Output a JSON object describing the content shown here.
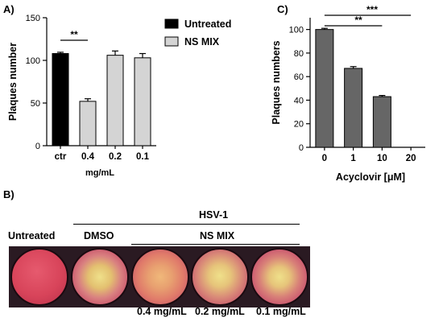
{
  "panel_labels": {
    "a": "A)",
    "b": "B)",
    "c": "C)"
  },
  "chart_data": [
    {
      "type": "bar",
      "categories": [
        "ctr",
        "0.4",
        "0.2",
        "0.1"
      ],
      "values": [
        108,
        52,
        106,
        103
      ],
      "errors": [
        1.5,
        3,
        5,
        5
      ],
      "series_of_category": [
        "Untreated",
        "NS MIX",
        "NS MIX",
        "NS MIX"
      ],
      "legend": [
        {
          "name": "Untreated",
          "color": "#000000"
        },
        {
          "name": "NS MIX",
          "color": "#d4d4d4"
        }
      ],
      "legend_position": "top-right",
      "xlabel": "mg/mL",
      "ylabel": "Plaques number",
      "ylim": [
        0,
        150
      ],
      "yticks": [
        0,
        50,
        100,
        150
      ],
      "significance": [
        {
          "from": "ctr",
          "to": "0.4",
          "label": "**"
        }
      ]
    },
    {
      "type": "bar",
      "categories": [
        "0",
        "1",
        "10",
        "20"
      ],
      "values": [
        100,
        67,
        43,
        0
      ],
      "errors": [
        1,
        1.5,
        1,
        0
      ],
      "color": "#666666",
      "xlabel": "Acyclovir [μM]",
      "ylabel": "Plaques numbers",
      "ylim": [
        0,
        110
      ],
      "yticks": [
        0,
        20,
        40,
        60,
        80,
        100
      ],
      "significance": [
        {
          "from": "0",
          "to": "10",
          "label": "**"
        },
        {
          "from": "0",
          "to": "20",
          "label": "***"
        }
      ]
    }
  ],
  "panel_b": {
    "header_virus": "HSV-1",
    "header_group": "NS MIX",
    "label_untreated": "Untreated",
    "label_dmso": "DMSO",
    "concentrations": [
      "0.4 mg/mL",
      "0.2 mg/mL",
      "0.1 mg/mL"
    ],
    "colors": {
      "well_base": "#d8445a",
      "plaque": "#e8d27a"
    }
  }
}
